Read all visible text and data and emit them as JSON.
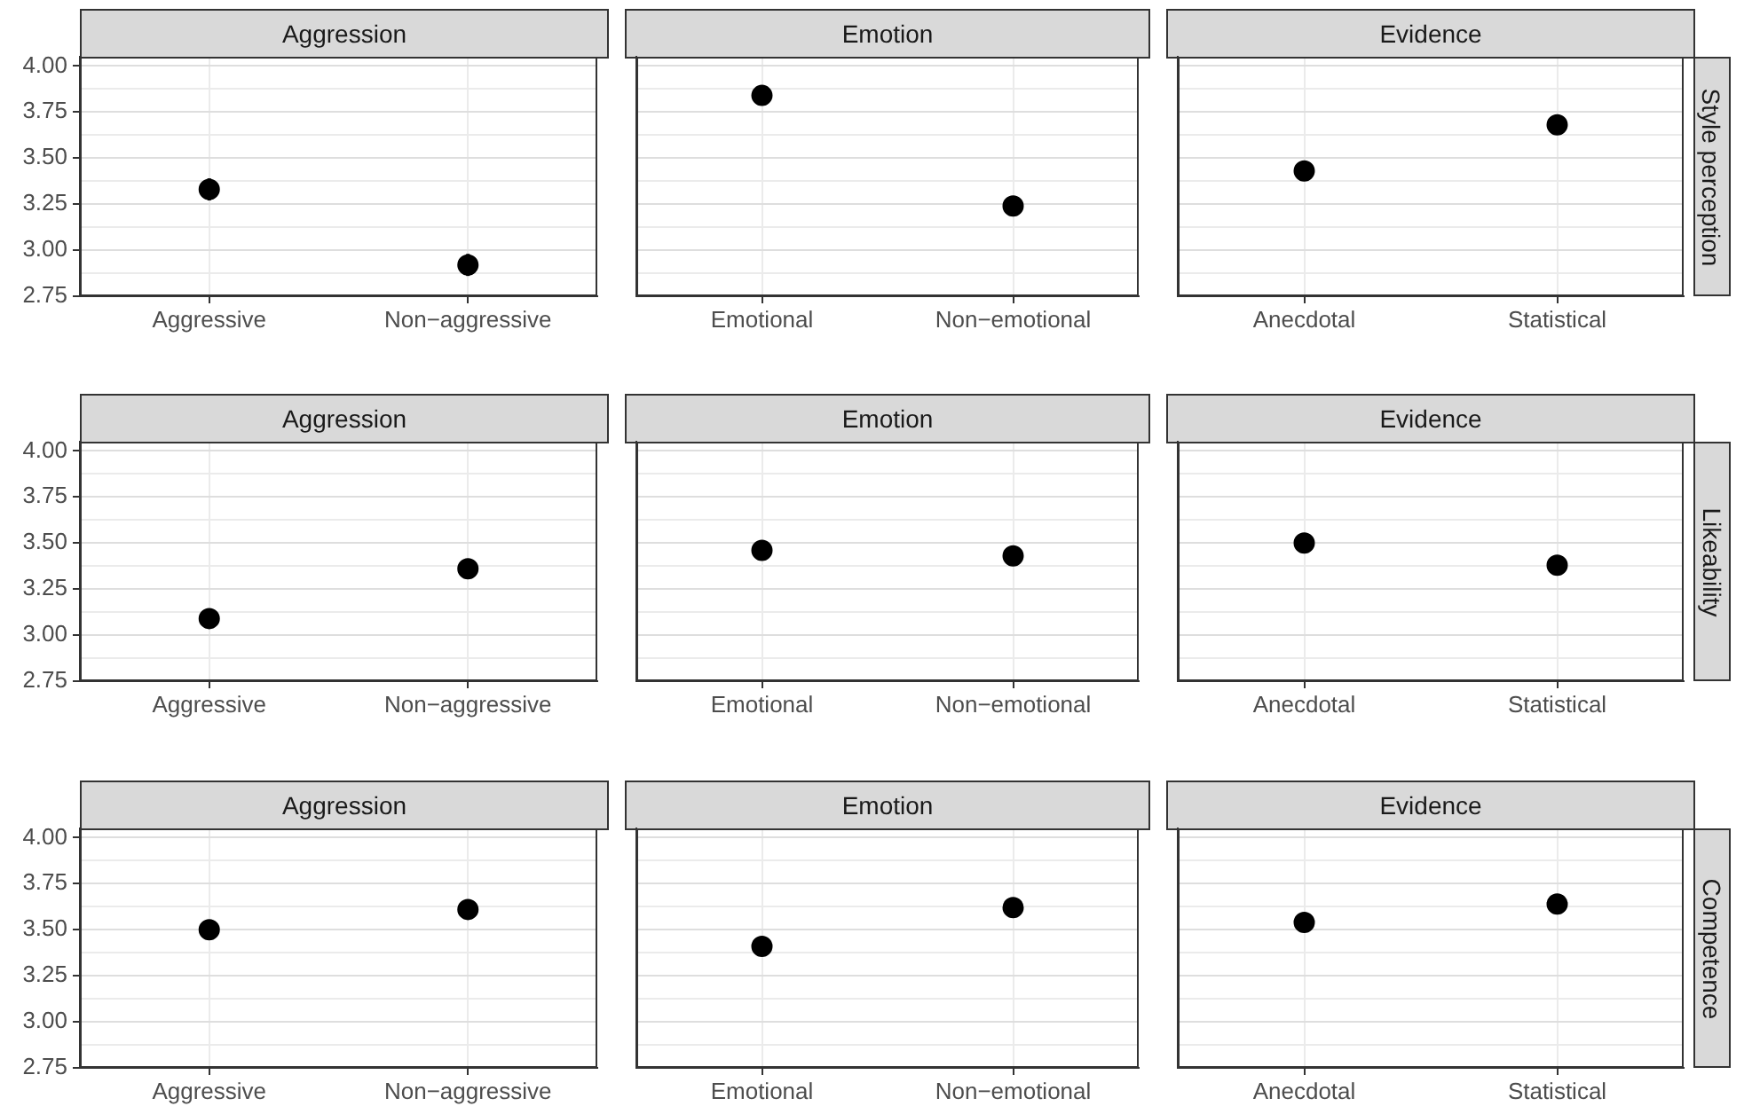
{
  "chart_data": [
    {
      "type": "scatter",
      "title": "Aggression",
      "categories": [
        "Aggressive",
        "Non−aggressive"
      ],
      "values": [
        3.33,
        2.92
      ],
      "errors": [
        0.06,
        0.06
      ],
      "color": "#000000",
      "marker": "circle",
      "grid": true,
      "ylim": [
        2.75,
        4.05
      ],
      "yticks": [
        2.75,
        {
          "value": 2.875,
          "label": null
        },
        {
          "value": 3,
          "label": "3.00"
        },
        {
          "value": 3.125,
          "label": null
        },
        3.25,
        {
          "value": 3.375,
          "label": null
        },
        {
          "value": 3.5,
          "label": "3.50"
        },
        {
          "value": 3.625,
          "label": null
        },
        3.75,
        {
          "value": 3.875,
          "label": null
        },
        {
          "value": 4,
          "label": "4.00"
        }
      ]
    },
    {
      "type": "scatter",
      "title": "Emotion",
      "categories": [
        "Emotional",
        "Non−emotional"
      ],
      "values": [
        3.84,
        3.24
      ],
      "errors": [
        0.05,
        0.05
      ],
      "color": "#000000",
      "marker": "circle",
      "grid": true,
      "tick_labels": "x",
      "ylim": [
        2.75,
        4.05
      ],
      "yticks": [
        2.75,
        {
          "value": 2.875,
          "label": null
        },
        3,
        {
          "value": 3.125,
          "label": null
        },
        3.25,
        {
          "value": 3.375,
          "label": null
        },
        3.5,
        {
          "value": 3.625,
          "label": null
        },
        3.75,
        {
          "value": 3.875,
          "label": null
        },
        4
      ]
    },
    {
      "type": "scatter",
      "title": "Evidence",
      "categories": [
        "Anecdotal",
        "Statistical"
      ],
      "values": [
        3.43,
        3.68
      ],
      "errors": [
        0.05,
        0.05
      ],
      "color": "#000000",
      "marker": "circle",
      "grid": true,
      "tick_labels": "x",
      "annotations": [
        "Style perception"
      ],
      "ylim": [
        2.75,
        4.05
      ],
      "yticks": [
        2.75,
        {
          "value": 2.875,
          "label": null
        },
        3,
        {
          "value": 3.125,
          "label": null
        },
        3.25,
        {
          "value": 3.375,
          "label": null
        },
        3.5,
        {
          "value": 3.625,
          "label": null
        },
        3.75,
        {
          "value": 3.875,
          "label": null
        },
        4
      ]
    },
    {
      "type": "scatter",
      "title": "Aggression",
      "categories": [
        "Aggressive",
        "Non−aggressive"
      ],
      "values": [
        3.09,
        3.36
      ],
      "color": "#000000",
      "marker": "circle",
      "grid": true,
      "ylim": [
        2.75,
        4.05
      ],
      "yticks": [
        2.75,
        {
          "value": 2.875,
          "label": null
        },
        {
          "value": 3,
          "label": "3.00"
        },
        {
          "value": 3.125,
          "label": null
        },
        3.25,
        {
          "value": 3.375,
          "label": null
        },
        {
          "value": 3.5,
          "label": "3.50"
        },
        {
          "value": 3.625,
          "label": null
        },
        3.75,
        {
          "value": 3.875,
          "label": null
        },
        {
          "value": 4,
          "label": "4.00"
        }
      ]
    },
    {
      "type": "scatter",
      "title": "Emotion",
      "categories": [
        "Emotional",
        "Non−emotional"
      ],
      "values": [
        3.46,
        3.43
      ],
      "color": "#000000",
      "marker": "circle",
      "grid": true,
      "tick_labels": "x",
      "ylim": [
        2.75,
        4.05
      ],
      "yticks": [
        2.75,
        {
          "value": 2.875,
          "label": null
        },
        3,
        {
          "value": 3.125,
          "label": null
        },
        3.25,
        {
          "value": 3.375,
          "label": null
        },
        3.5,
        {
          "value": 3.625,
          "label": null
        },
        3.75,
        {
          "value": 3.875,
          "label": null
        },
        4
      ]
    },
    {
      "type": "scatter",
      "title": "Evidence",
      "categories": [
        "Anecdotal",
        "Statistical"
      ],
      "values": [
        3.5,
        3.38
      ],
      "color": "#000000",
      "marker": "circle",
      "grid": true,
      "tick_labels": "x",
      "annotations": [
        "Likeability"
      ],
      "ylim": [
        2.75,
        4.05
      ],
      "yticks": [
        2.75,
        {
          "value": 2.875,
          "label": null
        },
        3,
        {
          "value": 3.125,
          "label": null
        },
        3.25,
        {
          "value": 3.375,
          "label": null
        },
        3.5,
        {
          "value": 3.625,
          "label": null
        },
        3.75,
        {
          "value": 3.875,
          "label": null
        },
        4
      ]
    },
    {
      "type": "scatter",
      "title": "Aggression",
      "categories": [
        "Aggressive",
        "Non−aggressive"
      ],
      "values": [
        3.5,
        3.61
      ],
      "color": "#000000",
      "marker": "circle",
      "grid": true,
      "ylim": [
        2.75,
        4.05
      ],
      "yticks": [
        2.75,
        {
          "value": 2.875,
          "label": null
        },
        {
          "value": 3,
          "label": "3.00"
        },
        {
          "value": 3.125,
          "label": null
        },
        3.25,
        {
          "value": 3.375,
          "label": null
        },
        {
          "value": 3.5,
          "label": "3.50"
        },
        {
          "value": 3.625,
          "label": null
        },
        3.75,
        {
          "value": 3.875,
          "label": null
        },
        {
          "value": 4,
          "label": "4.00"
        }
      ]
    },
    {
      "type": "scatter",
      "title": "Emotion",
      "categories": [
        "Emotional",
        "Non−emotional"
      ],
      "values": [
        3.41,
        3.62
      ],
      "color": "#000000",
      "marker": "circle",
      "grid": true,
      "tick_labels": "x",
      "ylim": [
        2.75,
        4.05
      ],
      "yticks": [
        2.75,
        {
          "value": 2.875,
          "label": null
        },
        3,
        {
          "value": 3.125,
          "label": null
        },
        3.25,
        {
          "value": 3.375,
          "label": null
        },
        3.5,
        {
          "value": 3.625,
          "label": null
        },
        3.75,
        {
          "value": 3.875,
          "label": null
        },
        4
      ]
    },
    {
      "type": "scatter",
      "title": "Evidence",
      "categories": [
        "Anecdotal",
        "Statistical"
      ],
      "values": [
        3.54,
        3.64
      ],
      "color": "#000000",
      "marker": "circle",
      "grid": true,
      "tick_labels": "x",
      "annotations": [
        "Competence"
      ],
      "ylim": [
        2.75,
        4.05
      ],
      "yticks": [
        2.75,
        {
          "value": 2.875,
          "label": null
        },
        3,
        {
          "value": 3.125,
          "label": null
        },
        3.25,
        {
          "value": 3.375,
          "label": null
        },
        3.5,
        {
          "value": 3.625,
          "label": null
        },
        3.75,
        {
          "value": 3.875,
          "label": null
        },
        4
      ]
    }
  ]
}
